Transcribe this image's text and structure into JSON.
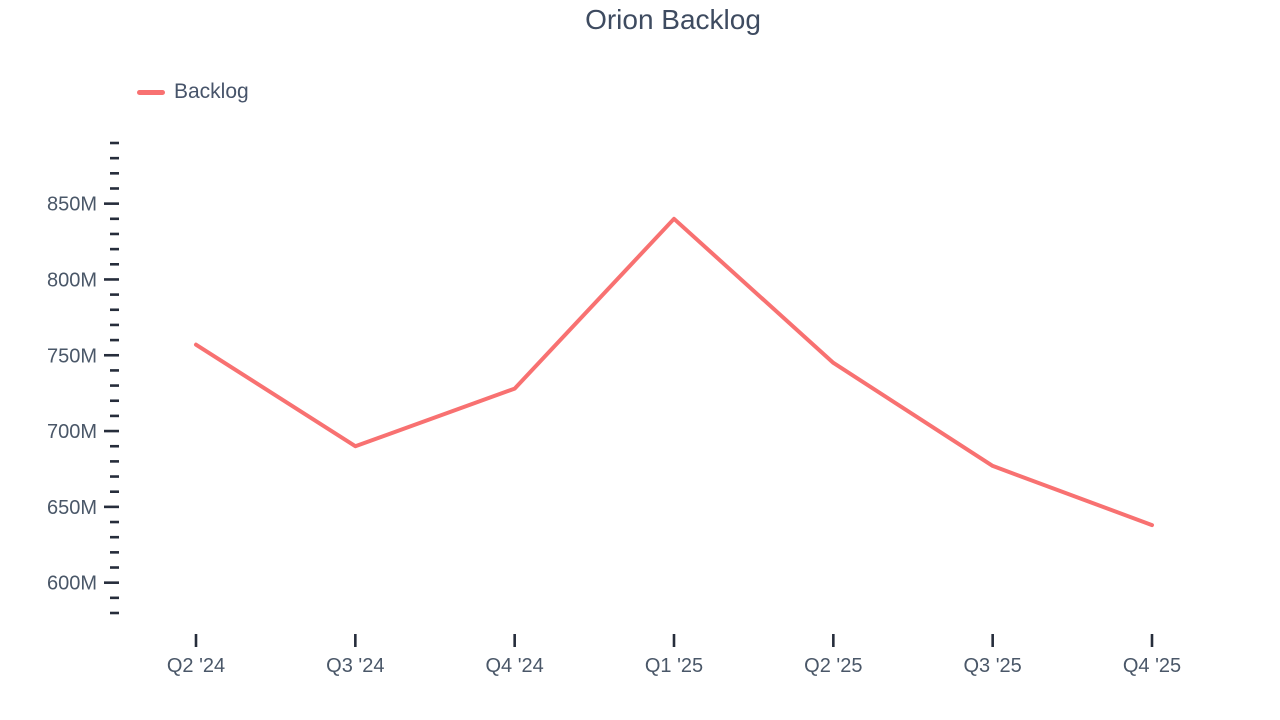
{
  "page": {
    "title": "Orion Backlog"
  },
  "legend": {
    "items": [
      {
        "label": "Backlog",
        "color": "#f87171"
      }
    ]
  },
  "chart_data": {
    "type": "line",
    "title": "Orion Backlog",
    "categories": [
      "Q2 '24",
      "Q3 '24",
      "Q4 '24",
      "Q1 '25",
      "Q2 '25",
      "Q3 '25",
      "Q4 '25"
    ],
    "series": [
      {
        "name": "Backlog",
        "color": "#f87171",
        "values": [
          757,
          690,
          728,
          840,
          745,
          677,
          638
        ]
      }
    ],
    "unit": "M",
    "ylim": [
      580,
      890
    ],
    "ytick_minor_step": 10,
    "ytick_major_step": 50,
    "ytick_labels": [
      "600M",
      "650M",
      "700M",
      "750M",
      "800M",
      "850M"
    ],
    "xlabel": "",
    "ylabel": "",
    "grid": false,
    "legend_position": "top-left"
  },
  "colors": {
    "accent": "#f87171",
    "title_text": "#3e4b60",
    "label_text": "#4a5768",
    "tick": "#262d3b",
    "background": "#ffffff"
  }
}
